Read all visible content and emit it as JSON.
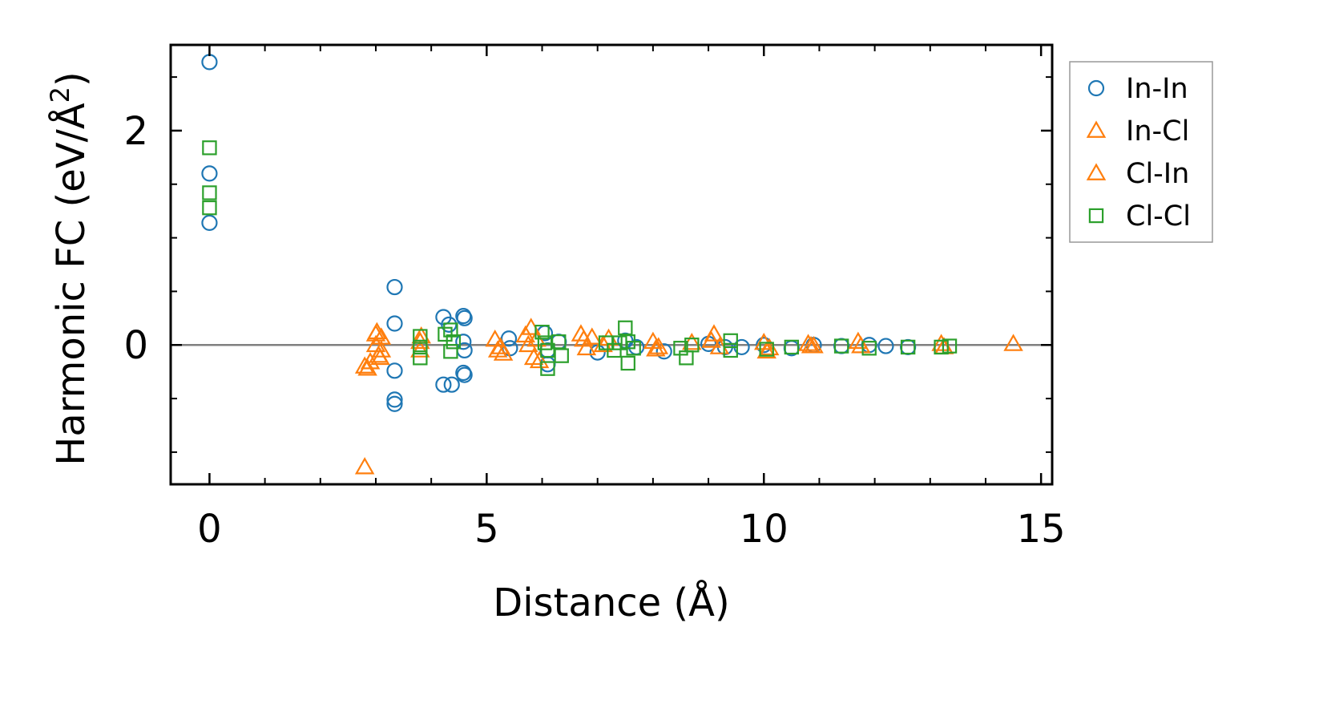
{
  "chart_data": {
    "type": "scatter",
    "xlabel": "Distance (Å)",
    "ylabel_main": "Harmonic FC (eV/Å",
    "ylabel_sup": "2",
    "ylabel_close": ")",
    "xlim": [
      -0.7,
      15.2
    ],
    "ylim": [
      -1.3,
      2.8
    ],
    "x_major_ticks": [
      0,
      5,
      10,
      15
    ],
    "x_tick_labels": [
      "0",
      "5",
      "10",
      "15"
    ],
    "x_minor_ticks": [
      1,
      2,
      3,
      4,
      6,
      7,
      8,
      9,
      11,
      12,
      13,
      14
    ],
    "y_major_ticks": [
      0,
      2
    ],
    "y_tick_labels": [
      "0",
      "2"
    ],
    "y_minor_ticks": [
      -1.0,
      -0.5,
      0.5,
      1.0,
      1.5,
      2.5
    ],
    "zero_line": true,
    "grid": false,
    "legend_position": "outside-right-top",
    "series": [
      {
        "name": "In-In",
        "marker": "circle",
        "color": "#1f77b4",
        "points": [
          [
            0,
            2.64
          ],
          [
            0,
            1.6
          ],
          [
            0,
            1.14
          ],
          [
            3.34,
            0.54
          ],
          [
            3.34,
            0.2
          ],
          [
            3.34,
            -0.24
          ],
          [
            3.34,
            -0.51
          ],
          [
            3.34,
            -0.55
          ],
          [
            4.22,
            0.26
          ],
          [
            4.32,
            0.19
          ],
          [
            4.22,
            -0.37
          ],
          [
            4.37,
            -0.37
          ],
          [
            4.58,
            0.27
          ],
          [
            4.6,
            0.25
          ],
          [
            4.58,
            0.03
          ],
          [
            4.6,
            -0.05
          ],
          [
            4.58,
            -0.26
          ],
          [
            4.6,
            -0.28
          ],
          [
            5.4,
            0.06
          ],
          [
            5.42,
            -0.03
          ],
          [
            6.05,
            0.11
          ],
          [
            6.1,
            -0.05
          ],
          [
            6.1,
            -0.18
          ],
          [
            6.3,
            0.03
          ],
          [
            7.0,
            -0.07
          ],
          [
            7.5,
            0.04
          ],
          [
            7.7,
            -0.02
          ],
          [
            8.2,
            -0.06
          ],
          [
            9.0,
            0.01
          ],
          [
            9.3,
            -0.02
          ],
          [
            9.6,
            -0.02
          ],
          [
            10.0,
            0.0
          ],
          [
            10.5,
            -0.03
          ],
          [
            10.9,
            0.0
          ],
          [
            11.4,
            -0.01
          ],
          [
            11.9,
            0.0
          ],
          [
            12.2,
            -0.01
          ],
          [
            12.6,
            -0.02
          ]
        ]
      },
      {
        "name": "In-Cl",
        "marker": "triangle",
        "color": "#ff7f0e",
        "points": [
          [
            2.8,
            -1.14
          ],
          [
            2.8,
            -0.2
          ],
          [
            2.9,
            -0.16
          ],
          [
            3.0,
            0.1
          ],
          [
            3.0,
            0.0
          ],
          [
            3.05,
            -0.1
          ],
          [
            3.1,
            -0.05
          ],
          [
            3.1,
            0.07
          ],
          [
            3.8,
            -0.05
          ],
          [
            3.8,
            0.03
          ],
          [
            5.15,
            0.05
          ],
          [
            5.2,
            -0.05
          ],
          [
            5.3,
            -0.08
          ],
          [
            5.75,
            0.0
          ],
          [
            5.8,
            0.16
          ],
          [
            5.85,
            -0.12
          ],
          [
            5.9,
            0.05
          ],
          [
            6.7,
            0.1
          ],
          [
            6.8,
            -0.03
          ],
          [
            6.9,
            0.07
          ],
          [
            7.1,
            0.0
          ],
          [
            8.0,
            0.03
          ],
          [
            8.1,
            -0.02
          ],
          [
            8.7,
            0.02
          ],
          [
            9.1,
            0.1
          ],
          [
            9.2,
            -0.02
          ],
          [
            10.0,
            0.02
          ],
          [
            10.1,
            -0.03
          ],
          [
            10.8,
            0.01
          ],
          [
            10.9,
            -0.01
          ],
          [
            11.7,
            0.03
          ],
          [
            13.2,
            0.01
          ],
          [
            14.5,
            0.01
          ]
        ]
      },
      {
        "name": "Cl-In",
        "marker": "triangle",
        "color": "#ff7f0e",
        "points": [
          [
            2.85,
            -0.22
          ],
          [
            3.02,
            0.12
          ],
          [
            3.08,
            -0.12
          ],
          [
            3.82,
            0.08
          ],
          [
            5.25,
            -0.02
          ],
          [
            5.7,
            0.09
          ],
          [
            5.95,
            -0.15
          ],
          [
            6.75,
            0.05
          ],
          [
            7.2,
            0.06
          ],
          [
            8.05,
            -0.04
          ],
          [
            9.05,
            0.04
          ],
          [
            10.05,
            -0.06
          ],
          [
            10.85,
            -0.01
          ],
          [
            11.75,
            -0.01
          ],
          [
            13.25,
            -0.02
          ]
        ]
      },
      {
        "name": "Cl-Cl",
        "marker": "square",
        "color": "#2ca02c",
        "points": [
          [
            0,
            1.84
          ],
          [
            0,
            1.42
          ],
          [
            0,
            1.28
          ],
          [
            3.8,
            0.08
          ],
          [
            3.8,
            -0.02
          ],
          [
            3.8,
            -0.12
          ],
          [
            4.25,
            0.1
          ],
          [
            4.35,
            0.14
          ],
          [
            4.4,
            0.03
          ],
          [
            4.35,
            -0.06
          ],
          [
            6.0,
            0.12
          ],
          [
            6.05,
            0.02
          ],
          [
            6.1,
            -0.05
          ],
          [
            6.1,
            -0.22
          ],
          [
            6.3,
            0.03
          ],
          [
            6.35,
            -0.1
          ],
          [
            7.15,
            0.02
          ],
          [
            7.3,
            -0.05
          ],
          [
            7.4,
            0.02
          ],
          [
            7.5,
            0.16
          ],
          [
            7.55,
            0.03
          ],
          [
            7.55,
            -0.17
          ],
          [
            7.65,
            -0.03
          ],
          [
            8.5,
            -0.03
          ],
          [
            8.6,
            -0.12
          ],
          [
            8.7,
            0.0
          ],
          [
            9.4,
            0.04
          ],
          [
            9.4,
            -0.05
          ],
          [
            10.05,
            -0.04
          ],
          [
            10.5,
            -0.02
          ],
          [
            11.4,
            -0.01
          ],
          [
            11.9,
            -0.03
          ],
          [
            12.6,
            -0.02
          ],
          [
            13.2,
            -0.02
          ],
          [
            13.35,
            -0.01
          ]
        ]
      }
    ]
  },
  "legend": {
    "items": [
      {
        "label": "In-In",
        "marker": "circle",
        "color": "#1f77b4"
      },
      {
        "label": "In-Cl",
        "marker": "triangle",
        "color": "#ff7f0e"
      },
      {
        "label": "Cl-In",
        "marker": "triangle",
        "color": "#ff7f0e"
      },
      {
        "label": "Cl-Cl",
        "marker": "square",
        "color": "#2ca02c"
      }
    ]
  }
}
